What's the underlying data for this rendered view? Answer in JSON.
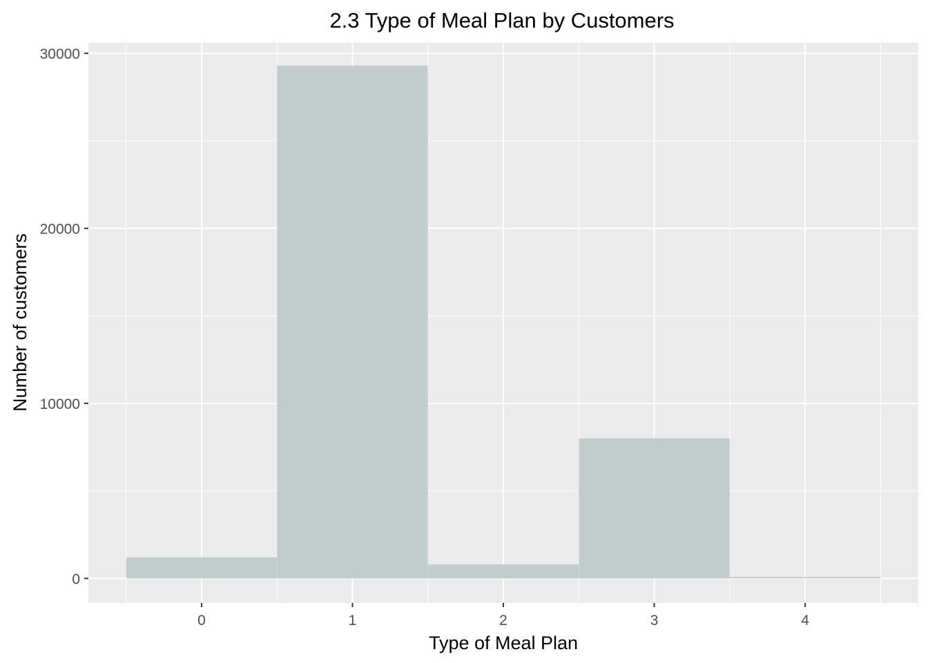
{
  "chart_data": {
    "type": "bar",
    "title": "2.3 Type of Meal Plan by Customers",
    "xlabel": "Type of Meal Plan",
    "ylabel": "Number of customers",
    "categories": [
      "0",
      "1",
      "2",
      "3",
      "4"
    ],
    "values": [
      1200,
      29300,
      800,
      8000,
      80
    ],
    "x_ticks": [
      "0",
      "1",
      "2",
      "3",
      "4"
    ],
    "y_ticks": [
      "0",
      "10000",
      "20000",
      "30000"
    ],
    "ylim": [
      -1400,
      30600
    ],
    "xlim": [
      -0.75,
      4.75
    ],
    "grid": true,
    "legend": "none",
    "colors": {
      "bar": "#c1cccc",
      "panel": "#ebebeb",
      "grid": "#ffffff",
      "background": "#ffffff"
    }
  }
}
